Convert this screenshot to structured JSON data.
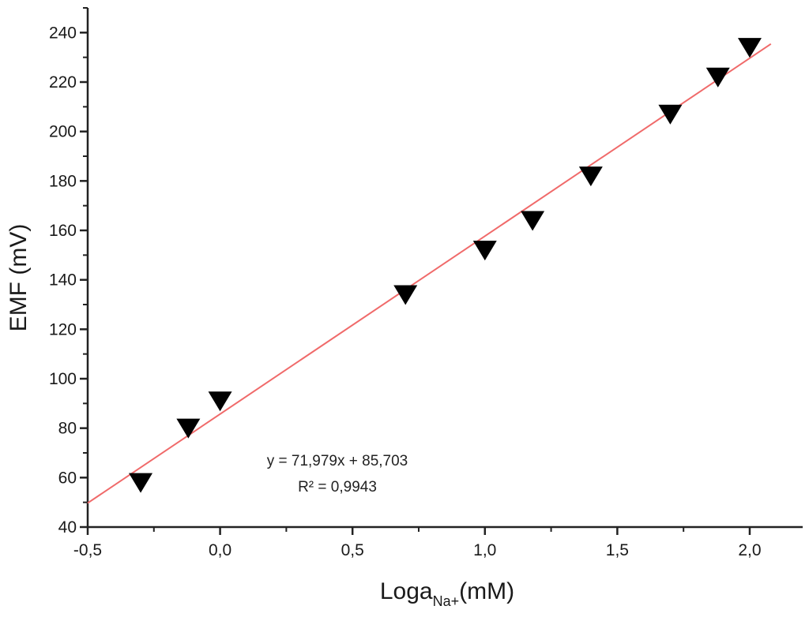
{
  "chart_data": {
    "type": "scatter",
    "title": "",
    "xlabel": {
      "main": "Loga",
      "sub": "Na+",
      "unit": "(mM)"
    },
    "ylabel": "EMF (mV)",
    "xlim": [
      -0.5,
      2.2
    ],
    "ylim": [
      40,
      250
    ],
    "x_ticks": [
      -0.5,
      0.0,
      0.5,
      1.0,
      1.5,
      2.0
    ],
    "x_tick_labels": [
      "-0,5",
      "0,0",
      "0,5",
      "1,0",
      "1,5",
      "2,0"
    ],
    "y_ticks": [
      40,
      60,
      80,
      100,
      120,
      140,
      160,
      180,
      200,
      220,
      240
    ],
    "y_tick_labels": [
      "40",
      "60",
      "80",
      "100",
      "120",
      "140",
      "160",
      "180",
      "200",
      "220",
      "240"
    ],
    "grid": false,
    "marker": "down-triangle",
    "marker_color": "#000000",
    "series": [
      {
        "points": [
          {
            "x": -0.3,
            "y": 58
          },
          {
            "x": -0.12,
            "y": 80
          },
          {
            "x": 0.0,
            "y": 91
          },
          {
            "x": 0.7,
            "y": 134
          },
          {
            "x": 1.0,
            "y": 152
          },
          {
            "x": 1.18,
            "y": 164
          },
          {
            "x": 1.4,
            "y": 182
          },
          {
            "x": 1.7,
            "y": 207
          },
          {
            "x": 1.88,
            "y": 222
          },
          {
            "x": 2.0,
            "y": 234
          }
        ]
      }
    ],
    "trendline": {
      "slope": 71.979,
      "intercept": 85.703,
      "x_range": [
        -0.5,
        2.08
      ],
      "color": "#f06a6a"
    },
    "annotations": {
      "equation": "y = 71,979x + 85,703",
      "r2": "R² = 0,9943"
    }
  }
}
